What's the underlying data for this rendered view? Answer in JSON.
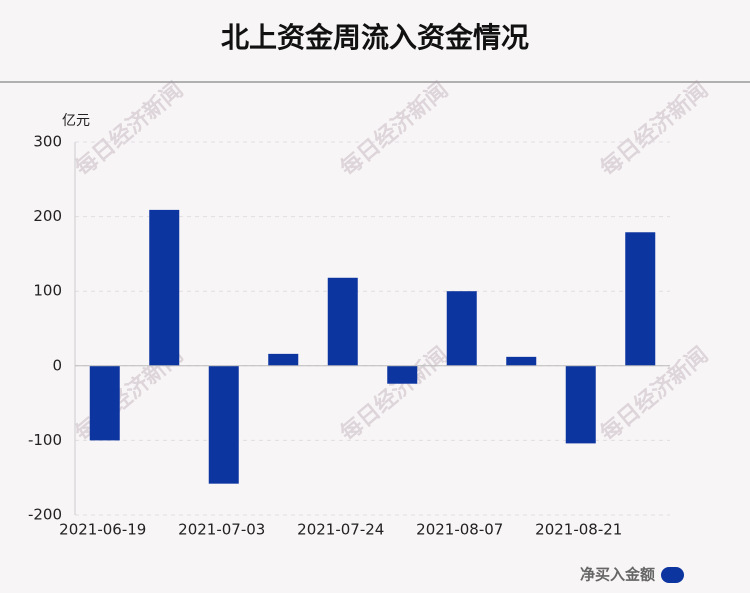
{
  "chart_data": {
    "type": "bar",
    "title": "北上资金周流入资金情况",
    "y_unit": "亿元",
    "categories": [
      "2021-06-19",
      null,
      "2021-07-03",
      null,
      "2021-07-24",
      null,
      "2021-08-07",
      null,
      "2021-08-21",
      null
    ],
    "series": [
      {
        "name": "净买入金额",
        "color": "#0d35a0",
        "values": [
          -100,
          209,
          -158,
          16,
          118,
          -24,
          100,
          12,
          -104,
          179
        ]
      }
    ],
    "ylim": [
      -200,
      300
    ],
    "yticks": [
      -200,
      -100,
      0,
      100,
      200,
      300
    ],
    "grid": true,
    "legend": "bottom-right",
    "watermark": "每日经济新闻"
  }
}
